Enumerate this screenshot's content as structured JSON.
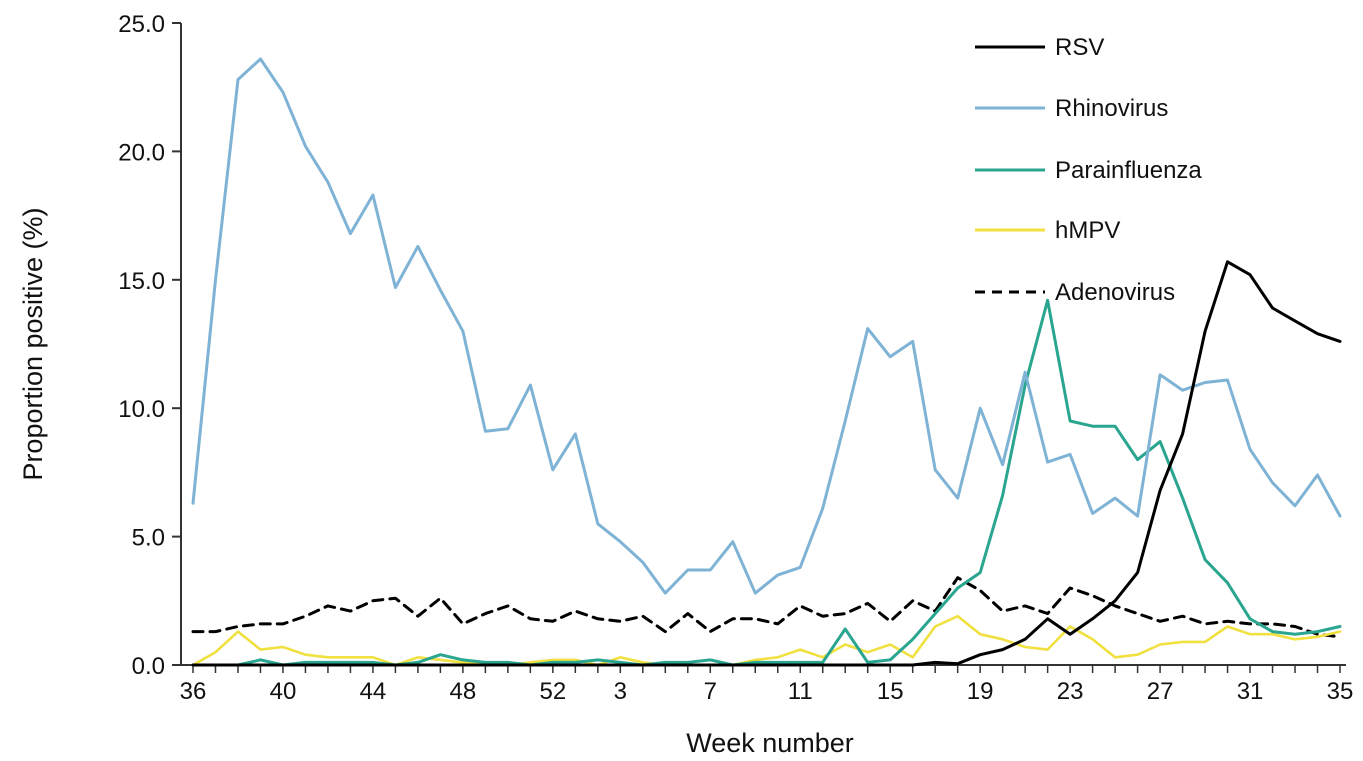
{
  "chart_data": {
    "type": "line",
    "title": "",
    "xlabel": "Week number",
    "ylabel": "Proportion positive (%)",
    "ylim": [
      0,
      25
    ],
    "yticks": [
      "0.0",
      "5.0",
      "10.0",
      "15.0",
      "20.0",
      "25.0"
    ],
    "xtick_labels": [
      "36",
      "40",
      "44",
      "48",
      "52",
      "3",
      "7",
      "11",
      "15",
      "19",
      "23",
      "27",
      "31",
      "35"
    ],
    "x": [
      "36",
      "37",
      "38",
      "39",
      "40",
      "41",
      "42",
      "43",
      "44",
      "45",
      "46",
      "47",
      "48",
      "49",
      "50",
      "51",
      "52",
      "1",
      "2",
      "3",
      "4",
      "5",
      "6",
      "7",
      "8",
      "9",
      "10",
      "11",
      "12",
      "13",
      "14",
      "15",
      "16",
      "17",
      "18",
      "19",
      "20",
      "21",
      "22",
      "23",
      "24",
      "25",
      "26",
      "27",
      "28",
      "29",
      "30",
      "31",
      "32",
      "33",
      "34",
      "35"
    ],
    "grid": false,
    "legend_position": "top-right",
    "series": [
      {
        "name": "RSV",
        "color": "#000000",
        "dash": "solid",
        "values": [
          0,
          0,
          0,
          0,
          0,
          0,
          0,
          0,
          0,
          0,
          0,
          0,
          0,
          0,
          0,
          0,
          0,
          0,
          0,
          0,
          0,
          0,
          0,
          0,
          0,
          0,
          0,
          0,
          0,
          0,
          0,
          0,
          0,
          0.1,
          0.05,
          0.4,
          0.6,
          1.0,
          1.8,
          1.2,
          1.8,
          2.5,
          3.6,
          6.8,
          9.0,
          13.0,
          15.7,
          15.2,
          13.9,
          13.4,
          12.9,
          12.6
        ]
      },
      {
        "name": "Rhinovirus",
        "color": "#7fb3d5",
        "dash": "solid",
        "values": [
          6.3,
          15.0,
          22.8,
          23.6,
          22.3,
          20.2,
          18.8,
          16.8,
          18.3,
          14.7,
          16.3,
          14.6,
          13.0,
          9.1,
          9.2,
          10.9,
          7.6,
          9.0,
          5.5,
          4.8,
          4.0,
          2.8,
          3.7,
          3.7,
          4.8,
          2.8,
          3.5,
          3.8,
          6.1,
          9.5,
          13.1,
          12.0,
          12.6,
          7.6,
          6.5,
          10.0,
          7.8,
          11.4,
          7.9,
          8.2,
          5.9,
          6.5,
          5.8,
          11.3,
          10.7,
          11.0,
          11.1,
          8.4,
          7.1,
          6.2,
          7.4,
          5.8
        ]
      },
      {
        "name": "Parainfluenza",
        "color": "#2aa58f",
        "dash": "solid",
        "values": [
          0,
          0,
          0,
          0.2,
          0,
          0.1,
          0.1,
          0.1,
          0.1,
          0,
          0.1,
          0.4,
          0.2,
          0.1,
          0.1,
          0,
          0.1,
          0.1,
          0.2,
          0.1,
          0,
          0.1,
          0.1,
          0.2,
          0,
          0.1,
          0.1,
          0.1,
          0.1,
          1.4,
          0.1,
          0.2,
          1.0,
          2.0,
          3.0,
          3.6,
          6.6,
          10.9,
          14.2,
          9.5,
          9.3,
          9.3,
          8.0,
          8.7,
          6.5,
          4.1,
          3.2,
          1.8,
          1.3,
          1.2,
          1.3,
          1.5
        ]
      },
      {
        "name": "hMPV",
        "color": "#f0e040",
        "dash": "solid",
        "values": [
          0,
          0.5,
          1.3,
          0.6,
          0.7,
          0.4,
          0.3,
          0.3,
          0.3,
          0,
          0.3,
          0.2,
          0.1,
          0.1,
          0,
          0.1,
          0.2,
          0.2,
          0,
          0.3,
          0.1,
          0,
          0,
          0,
          0,
          0.2,
          0.3,
          0.6,
          0.3,
          0.8,
          0.5,
          0.8,
          0.3,
          1.5,
          1.9,
          1.2,
          1.0,
          0.7,
          0.6,
          1.5,
          1.0,
          0.3,
          0.4,
          0.8,
          0.9,
          0.9,
          1.5,
          1.2,
          1.2,
          1.0,
          1.1,
          1.3
        ]
      },
      {
        "name": "Adenovirus",
        "color": "#000000",
        "dash": "dashed",
        "values": [
          1.3,
          1.3,
          1.5,
          1.6,
          1.6,
          1.9,
          2.3,
          2.1,
          2.5,
          2.6,
          1.9,
          2.6,
          1.6,
          2.0,
          2.3,
          1.8,
          1.7,
          2.1,
          1.8,
          1.7,
          1.9,
          1.3,
          2.0,
          1.3,
          1.8,
          1.8,
          1.6,
          2.3,
          1.9,
          2.0,
          2.4,
          1.7,
          2.5,
          2.1,
          3.4,
          2.9,
          2.1,
          2.3,
          2.0,
          3.0,
          2.7,
          2.3,
          2.0,
          1.7,
          1.9,
          1.6,
          1.7,
          1.6,
          1.6,
          1.5,
          1.2,
          1.1
        ]
      }
    ]
  }
}
